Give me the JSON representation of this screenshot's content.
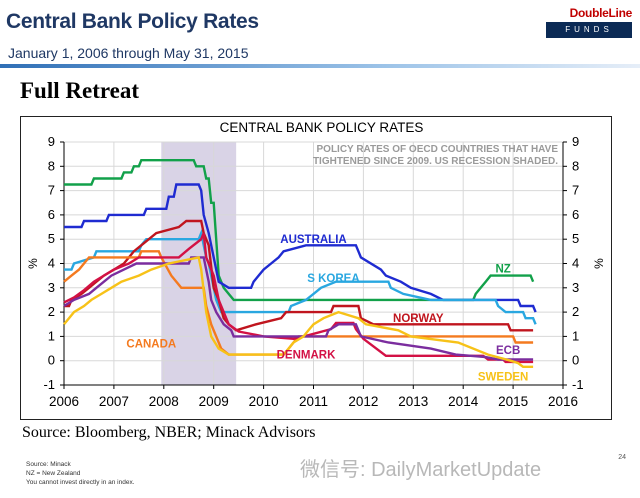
{
  "header": {
    "title": "Central Bank Policy Rates",
    "subtitle": "January 1, 2006  through May 31, 2015",
    "logo_top": "DoubleLine",
    "logo_bottom": "FUNDS"
  },
  "heading": "Full Retreat",
  "source": "Source: Bloomberg, NBER; Minack Advisors",
  "footnotes": [
    "Source: Minack",
    "NZ = New Zealand",
    "You cannot invest directly in an index."
  ],
  "page_number": "24",
  "watermark": "微信号: DailyMarketUpdate",
  "chart_data": {
    "type": "line",
    "title": "CENTRAL BANK POLICY RATES",
    "annotation_lines": [
      "POLICY RATES OF OECD COUNTRIES THAT HAVE",
      "TIGHTENED SINCE 2009.  US RECESSION SHADED."
    ],
    "ylabel_left": "%",
    "ylabel_right": "%",
    "xlim": [
      2006,
      2016
    ],
    "ylim": [
      -1,
      9
    ],
    "x_ticks": [
      2006,
      2007,
      2008,
      2009,
      2010,
      2011,
      2012,
      2013,
      2014,
      2015,
      2016
    ],
    "x_tick_labels": [
      "2006",
      "2007",
      "2008",
      "2009",
      "2010",
      "2011",
      "2012",
      "2013",
      "2014",
      "2015",
      "2016"
    ],
    "y_ticks": [
      -1,
      0,
      1,
      2,
      3,
      4,
      5,
      6,
      7,
      8,
      9
    ],
    "y_tick_labels": [
      "-1",
      "0",
      "1",
      "2",
      "3",
      "4",
      "5",
      "6",
      "7",
      "8",
      "9"
    ],
    "grid": true,
    "recession_shading": [
      2007.95,
      2009.45
    ],
    "colors": {
      "recession": "#d9d3e6",
      "grid": "#d8d8d8",
      "axis": "#000000",
      "annotation": "#9a9a9a"
    },
    "series": [
      {
        "name": "NZ",
        "label": "NZ",
        "color": "#12a14a",
        "label_pos": [
          14.8,
          3.8
        ],
        "points": [
          [
            2006.0,
            7.25
          ],
          [
            2006.55,
            7.25
          ],
          [
            2006.6,
            7.5
          ],
          [
            2007.15,
            7.5
          ],
          [
            2007.2,
            7.75
          ],
          [
            2007.35,
            7.75
          ],
          [
            2007.4,
            8.0
          ],
          [
            2007.5,
            8.0
          ],
          [
            2007.55,
            8.25
          ],
          [
            2008.6,
            8.25
          ],
          [
            2008.65,
            8.0
          ],
          [
            2008.8,
            8.0
          ],
          [
            2008.85,
            7.5
          ],
          [
            2008.9,
            7.5
          ],
          [
            2008.95,
            6.5
          ],
          [
            2009.0,
            6.5
          ],
          [
            2009.05,
            5.0
          ],
          [
            2009.1,
            3.5
          ],
          [
            2009.2,
            3.0
          ],
          [
            2009.3,
            2.75
          ],
          [
            2009.4,
            2.5
          ],
          [
            2014.2,
            2.5
          ],
          [
            2014.25,
            2.75
          ],
          [
            2014.35,
            3.0
          ],
          [
            2014.45,
            3.25
          ],
          [
            2014.55,
            3.5
          ],
          [
            2015.35,
            3.5
          ],
          [
            2015.4,
            3.25
          ]
        ]
      },
      {
        "name": "AUSTRALIA",
        "label": "AUSTRALIA",
        "color": "#1f2bd1",
        "label_pos": [
          11.0,
          5.0
        ],
        "points": [
          [
            2006.0,
            5.5
          ],
          [
            2006.35,
            5.5
          ],
          [
            2006.4,
            5.75
          ],
          [
            2006.85,
            5.75
          ],
          [
            2006.9,
            6.0
          ],
          [
            2007.6,
            6.0
          ],
          [
            2007.65,
            6.25
          ],
          [
            2008.05,
            6.25
          ],
          [
            2008.1,
            6.75
          ],
          [
            2008.2,
            6.75
          ],
          [
            2008.25,
            7.25
          ],
          [
            2008.7,
            7.25
          ],
          [
            2008.75,
            7.0
          ],
          [
            2008.8,
            6.0
          ],
          [
            2008.9,
            5.25
          ],
          [
            2009.0,
            4.25
          ],
          [
            2009.1,
            3.25
          ],
          [
            2009.3,
            3.0
          ],
          [
            2009.75,
            3.0
          ],
          [
            2009.8,
            3.25
          ],
          [
            2009.9,
            3.5
          ],
          [
            2010.0,
            3.75
          ],
          [
            2010.15,
            4.0
          ],
          [
            2010.3,
            4.25
          ],
          [
            2010.4,
            4.5
          ],
          [
            2010.85,
            4.75
          ],
          [
            2011.85,
            4.75
          ],
          [
            2011.9,
            4.5
          ],
          [
            2011.95,
            4.25
          ],
          [
            2012.35,
            3.75
          ],
          [
            2012.45,
            3.5
          ],
          [
            2012.75,
            3.25
          ],
          [
            2012.95,
            3.0
          ],
          [
            2013.35,
            2.75
          ],
          [
            2013.6,
            2.5
          ],
          [
            2015.1,
            2.5
          ],
          [
            2015.15,
            2.25
          ],
          [
            2015.4,
            2.25
          ],
          [
            2015.45,
            2.0
          ]
        ]
      },
      {
        "name": "S KOREA",
        "label": "S KOREA",
        "color": "#29a7e0",
        "label_pos": [
          11.4,
          3.4
        ],
        "points": [
          [
            2006.0,
            3.75
          ],
          [
            2006.15,
            3.75
          ],
          [
            2006.2,
            4.0
          ],
          [
            2006.6,
            4.25
          ],
          [
            2006.65,
            4.5
          ],
          [
            2007.5,
            4.5
          ],
          [
            2007.55,
            4.75
          ],
          [
            2007.65,
            5.0
          ],
          [
            2008.7,
            5.0
          ],
          [
            2008.75,
            5.25
          ],
          [
            2008.85,
            4.25
          ],
          [
            2008.9,
            4.0
          ],
          [
            2009.0,
            3.0
          ],
          [
            2009.05,
            2.5
          ],
          [
            2009.15,
            2.0
          ],
          [
            2010.5,
            2.0
          ],
          [
            2010.55,
            2.25
          ],
          [
            2010.85,
            2.5
          ],
          [
            2011.0,
            2.75
          ],
          [
            2011.15,
            3.0
          ],
          [
            2011.45,
            3.25
          ],
          [
            2012.5,
            3.25
          ],
          [
            2012.55,
            3.0
          ],
          [
            2012.8,
            2.75
          ],
          [
            2013.35,
            2.5
          ],
          [
            2014.65,
            2.5
          ],
          [
            2014.7,
            2.25
          ],
          [
            2014.85,
            2.0
          ],
          [
            2015.2,
            2.0
          ],
          [
            2015.25,
            1.75
          ],
          [
            2015.4,
            1.75
          ],
          [
            2015.45,
            1.5
          ]
        ]
      },
      {
        "name": "NORWAY",
        "label": "NORWAY",
        "color": "#c0151e",
        "label_pos": [
          13.1,
          1.75
        ],
        "points": [
          [
            2006.0,
            2.25
          ],
          [
            2006.1,
            2.25
          ],
          [
            2006.15,
            2.5
          ],
          [
            2006.35,
            2.75
          ],
          [
            2006.5,
            3.0
          ],
          [
            2006.65,
            3.25
          ],
          [
            2006.8,
            3.5
          ],
          [
            2007.0,
            3.75
          ],
          [
            2007.2,
            4.0
          ],
          [
            2007.4,
            4.5
          ],
          [
            2007.55,
            4.75
          ],
          [
            2007.7,
            5.0
          ],
          [
            2007.85,
            5.25
          ],
          [
            2008.3,
            5.5
          ],
          [
            2008.45,
            5.75
          ],
          [
            2008.75,
            5.75
          ],
          [
            2008.8,
            5.25
          ],
          [
            2008.9,
            4.75
          ],
          [
            2009.0,
            3.0
          ],
          [
            2009.1,
            2.5
          ],
          [
            2009.2,
            1.75
          ],
          [
            2009.3,
            1.5
          ],
          [
            2009.45,
            1.25
          ],
          [
            2009.85,
            1.5
          ],
          [
            2010.35,
            1.75
          ],
          [
            2010.45,
            2.0
          ],
          [
            2011.35,
            2.0
          ],
          [
            2011.4,
            2.25
          ],
          [
            2011.9,
            2.25
          ],
          [
            2011.95,
            1.75
          ],
          [
            2012.2,
            1.5
          ],
          [
            2014.9,
            1.5
          ],
          [
            2014.95,
            1.25
          ],
          [
            2015.4,
            1.25
          ]
        ]
      },
      {
        "name": "CANADA",
        "label": "CANADA",
        "color": "#f47a1f",
        "label_pos": [
          7.75,
          0.7
        ],
        "points": [
          [
            2006.0,
            3.25
          ],
          [
            2006.15,
            3.5
          ],
          [
            2006.3,
            3.75
          ],
          [
            2006.4,
            4.0
          ],
          [
            2006.5,
            4.25
          ],
          [
            2007.5,
            4.25
          ],
          [
            2007.55,
            4.5
          ],
          [
            2007.9,
            4.5
          ],
          [
            2007.95,
            4.25
          ],
          [
            2008.15,
            3.5
          ],
          [
            2008.35,
            3.0
          ],
          [
            2008.8,
            3.0
          ],
          [
            2008.85,
            2.25
          ],
          [
            2008.95,
            1.5
          ],
          [
            2009.05,
            1.0
          ],
          [
            2009.15,
            0.5
          ],
          [
            2009.3,
            0.25
          ],
          [
            2010.4,
            0.25
          ],
          [
            2010.5,
            0.5
          ],
          [
            2010.6,
            0.75
          ],
          [
            2010.7,
            1.0
          ],
          [
            2015.0,
            1.0
          ],
          [
            2015.05,
            0.75
          ],
          [
            2015.4,
            0.75
          ]
        ]
      },
      {
        "name": "DENMARK",
        "label": "DENMARK",
        "color": "#d31145",
        "label_pos": [
          10.85,
          0.25
        ],
        "points": [
          [
            2006.0,
            2.4
          ],
          [
            2006.2,
            2.6
          ],
          [
            2006.4,
            2.9
          ],
          [
            2006.6,
            3.25
          ],
          [
            2006.8,
            3.5
          ],
          [
            2007.0,
            3.75
          ],
          [
            2007.3,
            4.0
          ],
          [
            2007.5,
            4.25
          ],
          [
            2008.3,
            4.25
          ],
          [
            2008.5,
            4.6
          ],
          [
            2008.75,
            5.0
          ],
          [
            2008.8,
            5.25
          ],
          [
            2008.85,
            4.25
          ],
          [
            2009.0,
            3.5
          ],
          [
            2009.1,
            2.5
          ],
          [
            2009.2,
            2.0
          ],
          [
            2009.3,
            1.5
          ],
          [
            2009.5,
            1.2
          ],
          [
            2010.0,
            1.0
          ],
          [
            2010.6,
            0.9
          ],
          [
            2010.9,
            1.05
          ],
          [
            2011.35,
            1.3
          ],
          [
            2011.45,
            1.55
          ],
          [
            2011.8,
            1.55
          ],
          [
            2011.85,
            1.3
          ],
          [
            2012.0,
            0.9
          ],
          [
            2012.45,
            0.2
          ],
          [
            2014.4,
            0.2
          ],
          [
            2014.5,
            0.05
          ],
          [
            2014.8,
            0.05
          ],
          [
            2014.85,
            -0.05
          ],
          [
            2015.4,
            -0.05
          ]
        ]
      },
      {
        "name": "ECB",
        "label": "ECB",
        "color": "#7b2d9e",
        "label_pos": [
          14.9,
          0.45
        ],
        "points": [
          [
            2006.0,
            2.25
          ],
          [
            2006.2,
            2.5
          ],
          [
            2006.5,
            2.75
          ],
          [
            2006.65,
            3.0
          ],
          [
            2006.8,
            3.25
          ],
          [
            2006.95,
            3.5
          ],
          [
            2007.2,
            3.75
          ],
          [
            2007.45,
            4.0
          ],
          [
            2008.5,
            4.0
          ],
          [
            2008.55,
            4.25
          ],
          [
            2008.8,
            4.25
          ],
          [
            2008.85,
            3.75
          ],
          [
            2008.9,
            3.25
          ],
          [
            2008.95,
            2.5
          ],
          [
            2009.05,
            2.0
          ],
          [
            2009.2,
            1.5
          ],
          [
            2009.35,
            1.25
          ],
          [
            2009.4,
            1.0
          ],
          [
            2011.25,
            1.0
          ],
          [
            2011.3,
            1.25
          ],
          [
            2011.5,
            1.5
          ],
          [
            2011.85,
            1.5
          ],
          [
            2011.9,
            1.25
          ],
          [
            2011.95,
            1.0
          ],
          [
            2012.5,
            0.75
          ],
          [
            2013.35,
            0.5
          ],
          [
            2013.85,
            0.25
          ],
          [
            2014.45,
            0.15
          ],
          [
            2014.7,
            0.05
          ],
          [
            2015.4,
            0.05
          ]
        ]
      },
      {
        "name": "SWEDEN",
        "label": "SWEDEN",
        "color": "#f7c218",
        "label_pos": [
          14.8,
          -0.65
        ],
        "points": [
          [
            2006.0,
            1.5
          ],
          [
            2006.1,
            1.75
          ],
          [
            2006.2,
            2.0
          ],
          [
            2006.4,
            2.25
          ],
          [
            2006.55,
            2.5
          ],
          [
            2006.75,
            2.75
          ],
          [
            2006.95,
            3.0
          ],
          [
            2007.15,
            3.25
          ],
          [
            2007.5,
            3.5
          ],
          [
            2007.75,
            3.75
          ],
          [
            2008.1,
            4.0
          ],
          [
            2008.7,
            4.25
          ],
          [
            2008.75,
            3.75
          ],
          [
            2008.85,
            2.0
          ],
          [
            2008.95,
            1.0
          ],
          [
            2009.1,
            0.5
          ],
          [
            2009.3,
            0.25
          ],
          [
            2010.4,
            0.25
          ],
          [
            2010.5,
            0.5
          ],
          [
            2010.6,
            0.75
          ],
          [
            2010.8,
            1.0
          ],
          [
            2010.9,
            1.25
          ],
          [
            2011.0,
            1.5
          ],
          [
            2011.2,
            1.75
          ],
          [
            2011.5,
            2.0
          ],
          [
            2011.9,
            1.75
          ],
          [
            2012.05,
            1.5
          ],
          [
            2012.7,
            1.25
          ],
          [
            2012.95,
            1.0
          ],
          [
            2013.9,
            0.75
          ],
          [
            2014.5,
            0.25
          ],
          [
            2014.95,
            0.0
          ],
          [
            2015.1,
            -0.1
          ],
          [
            2015.2,
            -0.25
          ],
          [
            2015.4,
            -0.25
          ]
        ]
      }
    ]
  }
}
